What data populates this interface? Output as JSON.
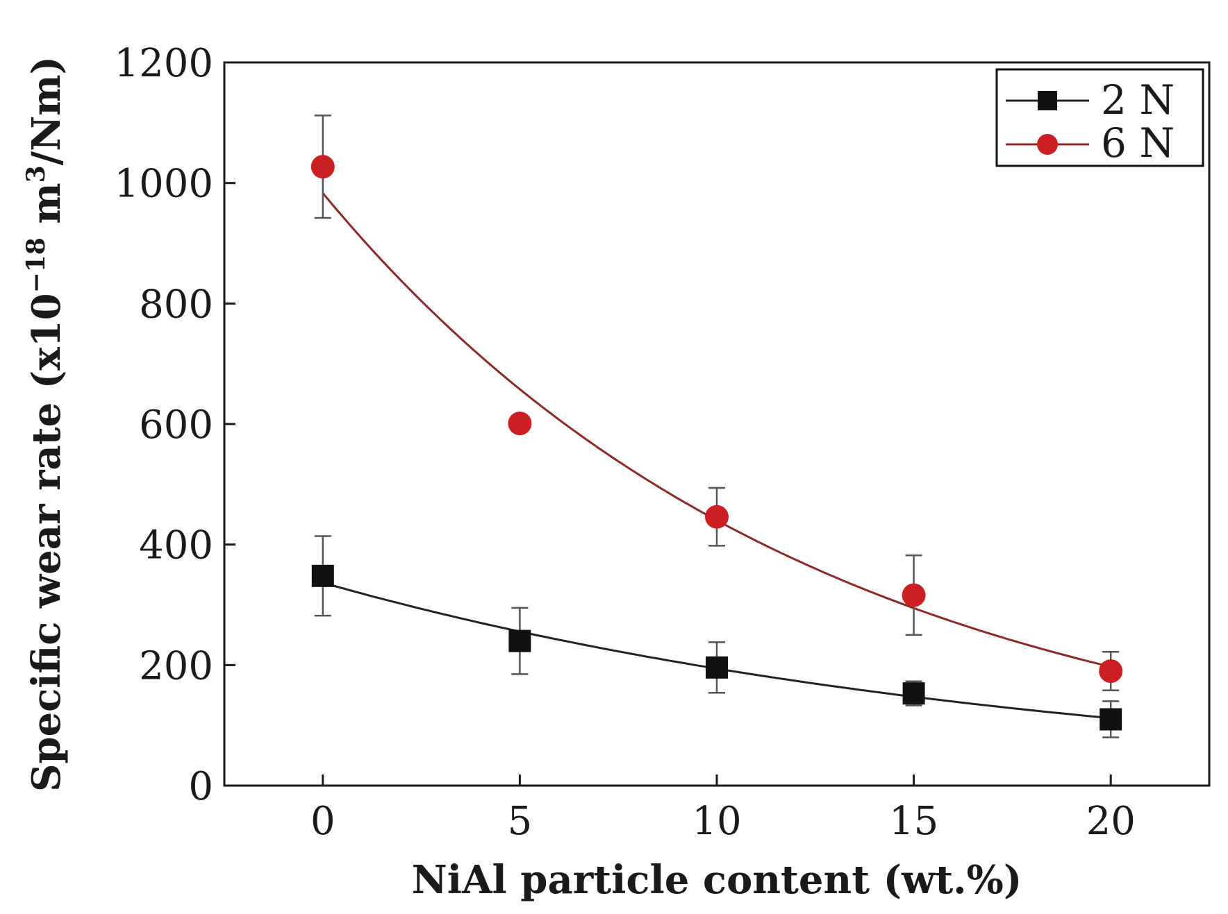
{
  "chart_data": {
    "type": "line",
    "title": "",
    "xlabel": "NiAl particle content (wt.%)",
    "ylabel": "Specific wear rate (x10",
    "ylabel_exponent": "−18",
    "ylabel_unit": " m",
    "ylabel_unit_exponent": "3",
    "ylabel_tail": "/Nm)",
    "x_ticks": [
      "0",
      "5",
      "10",
      "15",
      "20"
    ],
    "y_ticks": [
      "0",
      "200",
      "400",
      "600",
      "800",
      "1000",
      "1200"
    ],
    "xlim": [
      -2.5,
      22.5
    ],
    "ylim": [
      0,
      1200
    ],
    "grid": false,
    "legend_position": "top-right",
    "series": [
      {
        "name": "2 N",
        "color": "#111111",
        "line_color": "#222222",
        "marker": "square",
        "x": [
          0,
          5,
          10,
          15,
          20
        ],
        "values": [
          348,
          240,
          196,
          153,
          110
        ],
        "errors": [
          66,
          55,
          42,
          20,
          30
        ],
        "fit": "exponential"
      },
      {
        "name": "6 N",
        "color": "#cc1f24",
        "line_color": "#8c2a2a",
        "marker": "circle",
        "x": [
          0,
          5,
          10,
          15,
          20
        ],
        "values": [
          1027,
          601,
          446,
          316,
          190
        ],
        "errors": [
          85,
          0,
          48,
          66,
          32
        ],
        "fit": "exponential"
      }
    ]
  }
}
